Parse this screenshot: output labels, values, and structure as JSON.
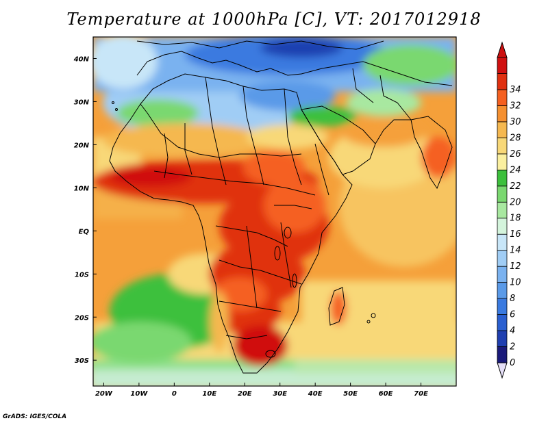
{
  "title": "Temperature at 1000hPa [C], VT: 2017012918",
  "credit": "GrADS: IGES/COLA",
  "map": {
    "lon_range": [
      -23,
      80
    ],
    "lat_range": [
      -36,
      45
    ],
    "lon_ticks": [
      {
        "value": -20,
        "label": "20W"
      },
      {
        "value": -10,
        "label": "10W"
      },
      {
        "value": 0,
        "label": "0"
      },
      {
        "value": 10,
        "label": "10E"
      },
      {
        "value": 20,
        "label": "20E"
      },
      {
        "value": 30,
        "label": "30E"
      },
      {
        "value": 40,
        "label": "40E"
      },
      {
        "value": 50,
        "label": "50E"
      },
      {
        "value": 60,
        "label": "60E"
      },
      {
        "value": 70,
        "label": "70E"
      }
    ],
    "lat_ticks": [
      {
        "value": 40,
        "label": "40N"
      },
      {
        "value": 30,
        "label": "30N"
      },
      {
        "value": 20,
        "label": "20N"
      },
      {
        "value": 10,
        "label": "10N"
      },
      {
        "value": 0,
        "label": "EQ"
      },
      {
        "value": -10,
        "label": "10S"
      },
      {
        "value": -20,
        "label": "20S"
      },
      {
        "value": -30,
        "label": "30S"
      }
    ]
  },
  "colorbar": {
    "levels": [
      "0",
      "2",
      "4",
      "6",
      "8",
      "10",
      "12",
      "14",
      "16",
      "18",
      "20",
      "22",
      "24",
      "26",
      "28",
      "30",
      "32",
      "34"
    ],
    "colors": [
      "#1a1a7a",
      "#1f3fb0",
      "#2a5fd0",
      "#3a7ae0",
      "#5a9ae8",
      "#7ab2f0",
      "#a0cdf5",
      "#c8e6f8",
      "#d4f4dc",
      "#a8e8a0",
      "#7ad870",
      "#3cc03c",
      "#fbf0a0",
      "#f8d878",
      "#f5b850",
      "#f59030",
      "#f56020",
      "#e03010",
      "#d01010"
    ],
    "under_color": "#e6e0f8",
    "over_color": "#cc1010"
  }
}
